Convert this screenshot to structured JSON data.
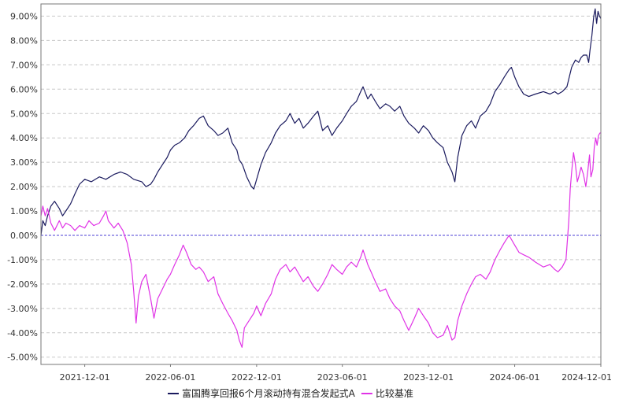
{
  "chart_data": {
    "type": "line",
    "title": "",
    "xlabel": "",
    "ylabel": "",
    "grid": true,
    "legend_position": "bottom",
    "zero_line_color": "#4b3fd6",
    "ylim": [
      -5.3,
      9.5
    ],
    "xlim": [
      "2021-08-30",
      "2024-12-01"
    ],
    "y_ticks": [
      "9.00%",
      "8.00%",
      "7.00%",
      "6.00%",
      "5.00%",
      "4.00%",
      "3.00%",
      "2.00%",
      "1.00%",
      "0.00%",
      "-1.00%",
      "-2.00%",
      "-3.00%",
      "-4.00%",
      "-5.00%"
    ],
    "x_ticks": [
      "2021-12-01",
      "2022-06-01",
      "2022-12-01",
      "2023-06-01",
      "2023-12-01",
      "2024-06-01",
      "2024-12-01"
    ],
    "series": [
      {
        "name": "富国腾享回报6个月滚动持有混合发起式A",
        "color": "#1a1a5e",
        "points": [
          [
            "2021-08-30",
            0.0
          ],
          [
            "2021-09-03",
            0.6
          ],
          [
            "2021-09-08",
            0.4
          ],
          [
            "2021-09-13",
            0.8
          ],
          [
            "2021-09-20",
            1.2
          ],
          [
            "2021-09-28",
            1.4
          ],
          [
            "2021-10-08",
            1.1
          ],
          [
            "2021-10-15",
            0.8
          ],
          [
            "2021-10-22",
            1.0
          ],
          [
            "2021-11-01",
            1.3
          ],
          [
            "2021-11-10",
            1.7
          ],
          [
            "2021-11-20",
            2.1
          ],
          [
            "2021-12-01",
            2.3
          ],
          [
            "2021-12-15",
            2.2
          ],
          [
            "2022-01-01",
            2.4
          ],
          [
            "2022-01-15",
            2.3
          ],
          [
            "2022-02-01",
            2.5
          ],
          [
            "2022-02-15",
            2.6
          ],
          [
            "2022-03-01",
            2.5
          ],
          [
            "2022-03-15",
            2.3
          ],
          [
            "2022-04-01",
            2.2
          ],
          [
            "2022-04-10",
            2.0
          ],
          [
            "2022-04-20",
            2.1
          ],
          [
            "2022-04-27",
            2.3
          ],
          [
            "2022-05-05",
            2.6
          ],
          [
            "2022-05-15",
            2.9
          ],
          [
            "2022-05-25",
            3.2
          ],
          [
            "2022-06-01",
            3.5
          ],
          [
            "2022-06-10",
            3.7
          ],
          [
            "2022-06-20",
            3.8
          ],
          [
            "2022-07-01",
            4.0
          ],
          [
            "2022-07-10",
            4.3
          ],
          [
            "2022-07-20",
            4.5
          ],
          [
            "2022-08-01",
            4.8
          ],
          [
            "2022-08-10",
            4.9
          ],
          [
            "2022-08-20",
            4.5
          ],
          [
            "2022-09-01",
            4.3
          ],
          [
            "2022-09-10",
            4.1
          ],
          [
            "2022-09-20",
            4.2
          ],
          [
            "2022-10-01",
            4.4
          ],
          [
            "2022-10-10",
            3.8
          ],
          [
            "2022-10-20",
            3.5
          ],
          [
            "2022-10-25",
            3.1
          ],
          [
            "2022-11-01",
            2.9
          ],
          [
            "2022-11-10",
            2.4
          ],
          [
            "2022-11-20",
            2.0
          ],
          [
            "2022-11-25",
            1.9
          ],
          [
            "2022-12-01",
            2.3
          ],
          [
            "2022-12-10",
            2.9
          ],
          [
            "2022-12-20",
            3.4
          ],
          [
            "2023-01-01",
            3.8
          ],
          [
            "2023-01-10",
            4.2
          ],
          [
            "2023-01-20",
            4.5
          ],
          [
            "2023-02-01",
            4.7
          ],
          [
            "2023-02-10",
            5.0
          ],
          [
            "2023-02-20",
            4.6
          ],
          [
            "2023-03-01",
            4.8
          ],
          [
            "2023-03-10",
            4.4
          ],
          [
            "2023-03-20",
            4.6
          ],
          [
            "2023-04-01",
            4.9
          ],
          [
            "2023-04-10",
            5.1
          ],
          [
            "2023-04-20",
            4.3
          ],
          [
            "2023-05-01",
            4.5
          ],
          [
            "2023-05-10",
            4.1
          ],
          [
            "2023-05-20",
            4.4
          ],
          [
            "2023-06-01",
            4.7
          ],
          [
            "2023-06-10",
            5.0
          ],
          [
            "2023-06-20",
            5.3
          ],
          [
            "2023-07-01",
            5.5
          ],
          [
            "2023-07-10",
            5.9
          ],
          [
            "2023-07-15",
            6.1
          ],
          [
            "2023-07-25",
            5.6
          ],
          [
            "2023-08-01",
            5.8
          ],
          [
            "2023-08-10",
            5.5
          ],
          [
            "2023-08-20",
            5.2
          ],
          [
            "2023-09-01",
            5.4
          ],
          [
            "2023-09-10",
            5.3
          ],
          [
            "2023-09-20",
            5.1
          ],
          [
            "2023-10-01",
            5.3
          ],
          [
            "2023-10-10",
            4.9
          ],
          [
            "2023-10-20",
            4.6
          ],
          [
            "2023-11-01",
            4.4
          ],
          [
            "2023-11-10",
            4.2
          ],
          [
            "2023-11-20",
            4.5
          ],
          [
            "2023-12-01",
            4.3
          ],
          [
            "2023-12-10",
            4.0
          ],
          [
            "2023-12-20",
            3.8
          ],
          [
            "2024-01-01",
            3.6
          ],
          [
            "2024-01-10",
            3.0
          ],
          [
            "2024-01-20",
            2.6
          ],
          [
            "2024-01-26",
            2.2
          ],
          [
            "2024-02-01",
            3.2
          ],
          [
            "2024-02-10",
            4.1
          ],
          [
            "2024-02-20",
            4.5
          ],
          [
            "2024-03-01",
            4.7
          ],
          [
            "2024-03-10",
            4.4
          ],
          [
            "2024-03-20",
            4.9
          ],
          [
            "2024-04-01",
            5.1
          ],
          [
            "2024-04-10",
            5.4
          ],
          [
            "2024-04-20",
            5.9
          ],
          [
            "2024-05-01",
            6.2
          ],
          [
            "2024-05-10",
            6.5
          ],
          [
            "2024-05-20",
            6.8
          ],
          [
            "2024-05-25",
            6.9
          ],
          [
            "2024-06-01",
            6.5
          ],
          [
            "2024-06-10",
            6.1
          ],
          [
            "2024-06-20",
            5.8
          ],
          [
            "2024-07-01",
            5.7
          ],
          [
            "2024-07-15",
            5.8
          ],
          [
            "2024-08-01",
            5.9
          ],
          [
            "2024-08-15",
            5.8
          ],
          [
            "2024-08-25",
            5.9
          ],
          [
            "2024-09-01",
            5.8
          ],
          [
            "2024-09-10",
            5.9
          ],
          [
            "2024-09-20",
            6.1
          ],
          [
            "2024-09-30",
            6.9
          ],
          [
            "2024-10-08",
            7.2
          ],
          [
            "2024-10-15",
            7.1
          ],
          [
            "2024-10-20",
            7.3
          ],
          [
            "2024-10-25",
            7.4
          ],
          [
            "2024-11-01",
            7.4
          ],
          [
            "2024-11-05",
            7.1
          ],
          [
            "2024-11-08",
            7.6
          ],
          [
            "2024-11-12",
            8.2
          ],
          [
            "2024-11-16",
            9.0
          ],
          [
            "2024-11-19",
            9.3
          ],
          [
            "2024-11-22",
            8.7
          ],
          [
            "2024-11-25",
            9.2
          ],
          [
            "2024-11-28",
            9.0
          ],
          [
            "2024-12-01",
            8.9
          ]
        ]
      },
      {
        "name": "比较基准",
        "color": "#e033e6",
        "points": [
          [
            "2021-08-30",
            0.8
          ],
          [
            "2021-09-03",
            1.2
          ],
          [
            "2021-09-08",
            0.8
          ],
          [
            "2021-09-13",
            1.1
          ],
          [
            "2021-09-20",
            0.5
          ],
          [
            "2021-09-28",
            0.2
          ],
          [
            "2021-10-08",
            0.6
          ],
          [
            "2021-10-15",
            0.3
          ],
          [
            "2021-10-22",
            0.5
          ],
          [
            "2021-11-01",
            0.4
          ],
          [
            "2021-11-10",
            0.2
          ],
          [
            "2021-11-20",
            0.4
          ],
          [
            "2021-12-01",
            0.3
          ],
          [
            "2021-12-10",
            0.6
          ],
          [
            "2021-12-20",
            0.4
          ],
          [
            "2022-01-01",
            0.5
          ],
          [
            "2022-01-10",
            0.8
          ],
          [
            "2022-01-15",
            1.0
          ],
          [
            "2022-01-20",
            0.6
          ],
          [
            "2022-02-01",
            0.3
          ],
          [
            "2022-02-10",
            0.5
          ],
          [
            "2022-02-20",
            0.2
          ],
          [
            "2022-03-01",
            -0.3
          ],
          [
            "2022-03-10",
            -1.2
          ],
          [
            "2022-03-15",
            -2.3
          ],
          [
            "2022-03-20",
            -3.6
          ],
          [
            "2022-03-25",
            -2.5
          ],
          [
            "2022-04-01",
            -1.9
          ],
          [
            "2022-04-10",
            -1.6
          ],
          [
            "2022-04-20",
            -2.6
          ],
          [
            "2022-04-27",
            -3.4
          ],
          [
            "2022-05-05",
            -2.6
          ],
          [
            "2022-05-15",
            -2.2
          ],
          [
            "2022-05-25",
            -1.8
          ],
          [
            "2022-06-01",
            -1.6
          ],
          [
            "2022-06-10",
            -1.2
          ],
          [
            "2022-06-20",
            -0.8
          ],
          [
            "2022-06-28",
            -0.4
          ],
          [
            "2022-07-05",
            -0.7
          ],
          [
            "2022-07-15",
            -1.2
          ],
          [
            "2022-07-25",
            -1.4
          ],
          [
            "2022-08-01",
            -1.3
          ],
          [
            "2022-08-10",
            -1.5
          ],
          [
            "2022-08-20",
            -1.9
          ],
          [
            "2022-09-01",
            -1.7
          ],
          [
            "2022-09-10",
            -2.4
          ],
          [
            "2022-09-20",
            -2.8
          ],
          [
            "2022-10-01",
            -3.2
          ],
          [
            "2022-10-10",
            -3.5
          ],
          [
            "2022-10-20",
            -3.9
          ],
          [
            "2022-10-25",
            -4.3
          ],
          [
            "2022-10-31",
            -4.6
          ],
          [
            "2022-11-05",
            -3.8
          ],
          [
            "2022-11-15",
            -3.5
          ],
          [
            "2022-11-25",
            -3.2
          ],
          [
            "2022-12-01",
            -2.9
          ],
          [
            "2022-12-10",
            -3.3
          ],
          [
            "2022-12-20",
            -2.8
          ],
          [
            "2023-01-01",
            -2.4
          ],
          [
            "2023-01-10",
            -1.8
          ],
          [
            "2023-01-20",
            -1.4
          ],
          [
            "2023-02-01",
            -1.2
          ],
          [
            "2023-02-10",
            -1.5
          ],
          [
            "2023-02-20",
            -1.3
          ],
          [
            "2023-03-01",
            -1.6
          ],
          [
            "2023-03-10",
            -1.9
          ],
          [
            "2023-03-20",
            -1.7
          ],
          [
            "2023-04-01",
            -2.1
          ],
          [
            "2023-04-10",
            -2.3
          ],
          [
            "2023-04-20",
            -2.0
          ],
          [
            "2023-05-01",
            -1.6
          ],
          [
            "2023-05-10",
            -1.2
          ],
          [
            "2023-05-20",
            -1.4
          ],
          [
            "2023-06-01",
            -1.6
          ],
          [
            "2023-06-10",
            -1.3
          ],
          [
            "2023-06-20",
            -1.1
          ],
          [
            "2023-07-01",
            -1.3
          ],
          [
            "2023-07-10",
            -0.9
          ],
          [
            "2023-07-15",
            -0.6
          ],
          [
            "2023-07-25",
            -1.2
          ],
          [
            "2023-08-01",
            -1.5
          ],
          [
            "2023-08-10",
            -1.9
          ],
          [
            "2023-08-20",
            -2.3
          ],
          [
            "2023-09-01",
            -2.2
          ],
          [
            "2023-09-10",
            -2.6
          ],
          [
            "2023-09-20",
            -2.9
          ],
          [
            "2023-10-01",
            -3.1
          ],
          [
            "2023-10-10",
            -3.5
          ],
          [
            "2023-10-20",
            -3.9
          ],
          [
            "2023-11-01",
            -3.4
          ],
          [
            "2023-11-10",
            -3.0
          ],
          [
            "2023-11-20",
            -3.3
          ],
          [
            "2023-12-01",
            -3.6
          ],
          [
            "2023-12-10",
            -4.0
          ],
          [
            "2023-12-20",
            -4.2
          ],
          [
            "2024-01-01",
            -4.1
          ],
          [
            "2024-01-10",
            -3.7
          ],
          [
            "2024-01-20",
            -4.3
          ],
          [
            "2024-01-26",
            -4.2
          ],
          [
            "2024-02-01",
            -3.5
          ],
          [
            "2024-02-10",
            -2.9
          ],
          [
            "2024-02-20",
            -2.4
          ],
          [
            "2024-03-01",
            -2.0
          ],
          [
            "2024-03-10",
            -1.7
          ],
          [
            "2024-03-20",
            -1.6
          ],
          [
            "2024-04-01",
            -1.8
          ],
          [
            "2024-04-10",
            -1.5
          ],
          [
            "2024-04-20",
            -1.0
          ],
          [
            "2024-05-01",
            -0.6
          ],
          [
            "2024-05-10",
            -0.3
          ],
          [
            "2024-05-20",
            0.0
          ],
          [
            "2024-06-01",
            -0.4
          ],
          [
            "2024-06-10",
            -0.7
          ],
          [
            "2024-06-20",
            -0.8
          ],
          [
            "2024-07-01",
            -0.9
          ],
          [
            "2024-07-15",
            -1.1
          ],
          [
            "2024-08-01",
            -1.3
          ],
          [
            "2024-08-15",
            -1.2
          ],
          [
            "2024-08-25",
            -1.4
          ],
          [
            "2024-09-01",
            -1.5
          ],
          [
            "2024-09-10",
            -1.3
          ],
          [
            "2024-09-18",
            -1.0
          ],
          [
            "2024-09-24",
            0.6
          ],
          [
            "2024-09-27",
            1.9
          ],
          [
            "2024-09-30",
            2.6
          ],
          [
            "2024-10-04",
            3.4
          ],
          [
            "2024-10-08",
            2.9
          ],
          [
            "2024-10-12",
            2.2
          ],
          [
            "2024-10-15",
            2.4
          ],
          [
            "2024-10-20",
            2.8
          ],
          [
            "2024-10-25",
            2.5
          ],
          [
            "2024-10-30",
            2.0
          ],
          [
            "2024-11-03",
            2.6
          ],
          [
            "2024-11-07",
            3.3
          ],
          [
            "2024-11-10",
            2.4
          ],
          [
            "2024-11-14",
            2.7
          ],
          [
            "2024-11-17",
            3.6
          ],
          [
            "2024-11-20",
            4.0
          ],
          [
            "2024-11-23",
            3.7
          ],
          [
            "2024-11-26",
            4.1
          ],
          [
            "2024-11-29",
            4.2
          ],
          [
            "2024-12-01",
            4.2
          ]
        ]
      }
    ]
  }
}
